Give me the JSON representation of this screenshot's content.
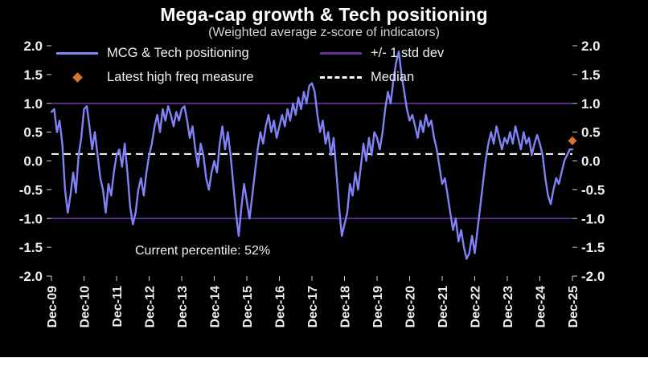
{
  "header": {
    "title": "Mega-cap growth & Tech positioning",
    "subtitle": "(Weighted average z-score of indicators)"
  },
  "legend": {
    "series_label": "MCG & Tech positioning",
    "std_dev_label": "+/- 1 std dev",
    "latest_label": "Latest high freq measure",
    "median_label": "Median"
  },
  "annotation": {
    "current_percentile": "Current percentile: 52%"
  },
  "chart_data": {
    "type": "line",
    "title": "Mega-cap growth & Tech positioning",
    "subtitle": "(Weighted average z-score of indicators)",
    "ylim": [
      -2.0,
      2.0
    ],
    "yticks": [
      2.0,
      1.5,
      1.0,
      0.5,
      0.0,
      -0.5,
      -1.0,
      -1.5,
      -2.0
    ],
    "grid": false,
    "legend_position": "top",
    "x_start": "Dec-09",
    "frequency": "monthly",
    "x_tick_labels": [
      "Dec-09",
      "Dec-10",
      "Dec-11",
      "Dec-12",
      "Dec-13",
      "Dec-14",
      "Dec-15",
      "Dec-16",
      "Dec-17",
      "Dec-18",
      "Dec-19",
      "Dec-20",
      "Dec-21",
      "Dec-22",
      "Dec-23",
      "Dec-24",
      "Dec-25"
    ],
    "series": [
      {
        "name": "MCG & Tech positioning",
        "values": [
          0.85,
          0.9,
          0.5,
          0.7,
          0.3,
          -0.5,
          -0.9,
          -0.6,
          -0.2,
          -0.55,
          0.1,
          0.4,
          0.9,
          0.95,
          0.6,
          0.2,
          0.5,
          0.1,
          -0.3,
          -0.5,
          -0.9,
          -0.4,
          -0.6,
          -0.2,
          0.1,
          0.2,
          -0.1,
          0.3,
          -0.2,
          -0.8,
          -1.1,
          -0.9,
          -0.5,
          -0.3,
          -0.6,
          -0.2,
          0.1,
          0.3,
          0.6,
          0.8,
          0.5,
          0.9,
          0.7,
          0.95,
          0.8,
          0.6,
          0.85,
          0.7,
          0.9,
          0.95,
          0.7,
          0.4,
          0.6,
          0.2,
          -0.1,
          0.3,
          0.1,
          -0.3,
          -0.5,
          -0.2,
          0.0,
          -0.2,
          0.3,
          0.6,
          0.2,
          0.5,
          0.1,
          -0.4,
          -0.9,
          -1.3,
          -0.8,
          -0.4,
          -0.7,
          -1.0,
          -0.6,
          -0.2,
          0.2,
          0.5,
          0.3,
          0.6,
          0.8,
          0.5,
          0.7,
          0.4,
          0.6,
          0.8,
          0.6,
          0.9,
          0.7,
          1.0,
          0.8,
          1.1,
          0.9,
          1.2,
          1.0,
          1.3,
          1.35,
          1.2,
          0.8,
          0.5,
          0.7,
          0.3,
          0.5,
          0.1,
          0.4,
          -0.2,
          -0.8,
          -1.3,
          -1.1,
          -0.9,
          -0.4,
          -0.6,
          -0.2,
          -0.5,
          -0.1,
          0.3,
          0.0,
          0.4,
          0.1,
          0.5,
          0.4,
          0.2,
          0.5,
          0.9,
          1.2,
          1.0,
          1.4,
          1.7,
          1.9,
          1.5,
          1.2,
          0.9,
          0.7,
          0.8,
          0.6,
          0.4,
          0.7,
          0.5,
          0.8,
          0.6,
          0.7,
          0.4,
          0.2,
          -0.1,
          -0.4,
          -0.3,
          -0.6,
          -0.9,
          -1.2,
          -1.0,
          -1.4,
          -1.2,
          -1.5,
          -1.7,
          -1.6,
          -1.3,
          -1.6,
          -1.2,
          -0.8,
          -0.4,
          0.0,
          0.3,
          0.5,
          0.3,
          0.6,
          0.4,
          0.2,
          0.4,
          0.3,
          0.5,
          0.3,
          0.6,
          0.4,
          0.2,
          0.5,
          0.3,
          0.4,
          0.1,
          0.3,
          0.45,
          0.3,
          0.1,
          -0.3,
          -0.6,
          -0.75,
          -0.5,
          -0.3,
          -0.4,
          -0.2,
          0.0,
          0.1,
          0.2,
          0.2
        ]
      }
    ],
    "std_dev_lines": [
      1.0,
      -1.0
    ],
    "median": 0.12,
    "latest_point": {
      "x_label": "Dec-25",
      "value": 0.35
    },
    "annotation": "Current percentile: 52%",
    "colors": {
      "series": "#8082f5",
      "std_dev": "#663399",
      "median": "#ffffff",
      "latest": "#d2752e",
      "background": "#000000",
      "text": "#f0f0f0"
    }
  }
}
